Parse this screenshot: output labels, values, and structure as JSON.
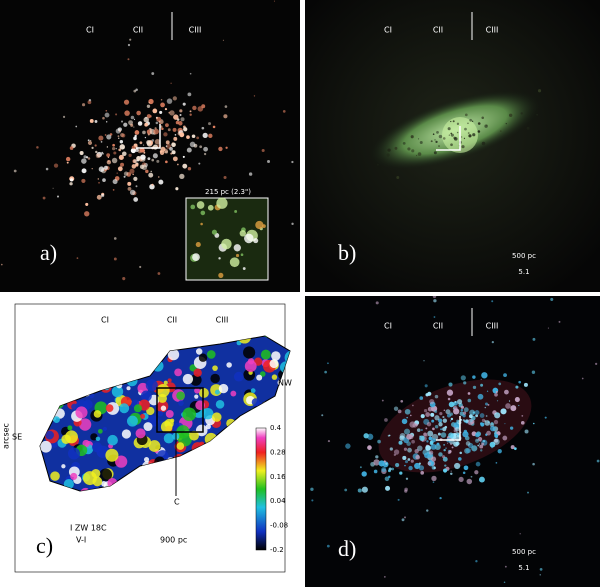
{
  "panels": [
    {
      "label": "a)",
      "regions": [
        "CI",
        "CII",
        "CIII"
      ],
      "scale": "215 pc (2.3\")"
    },
    {
      "label": "b)",
      "regions": [
        "CI",
        "CII",
        "CIII"
      ],
      "scale": "500 pc",
      "ratio": "5.1"
    },
    {
      "label": "c)",
      "regions": [
        "CI",
        "CII",
        "CIII"
      ],
      "markers": [
        "NW",
        "SE",
        "C"
      ],
      "object": "I ZW 18C",
      "color_index": "V-I",
      "scale": "900 pc",
      "axis_label": "arcsec",
      "colorbar": [
        "0.4",
        "0.28",
        "0.16",
        "0.04",
        "-0.08",
        "-0.2"
      ]
    },
    {
      "label": "d)",
      "regions": [
        "CI",
        "CII",
        "CIII"
      ],
      "scale": "500 pc",
      "ratio": "5.1"
    }
  ]
}
